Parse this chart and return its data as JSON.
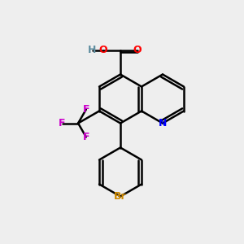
{
  "bg_color": "#eeeeee",
  "bond_color": "#000000",
  "atom_colors": {
    "O": "#ff0000",
    "H": "#5f8ea0",
    "N": "#0000ff",
    "F": "#cc00cc",
    "Br": "#cc8800",
    "C": "#000000"
  },
  "bond_width": 1.8,
  "dbo": 0.12
}
